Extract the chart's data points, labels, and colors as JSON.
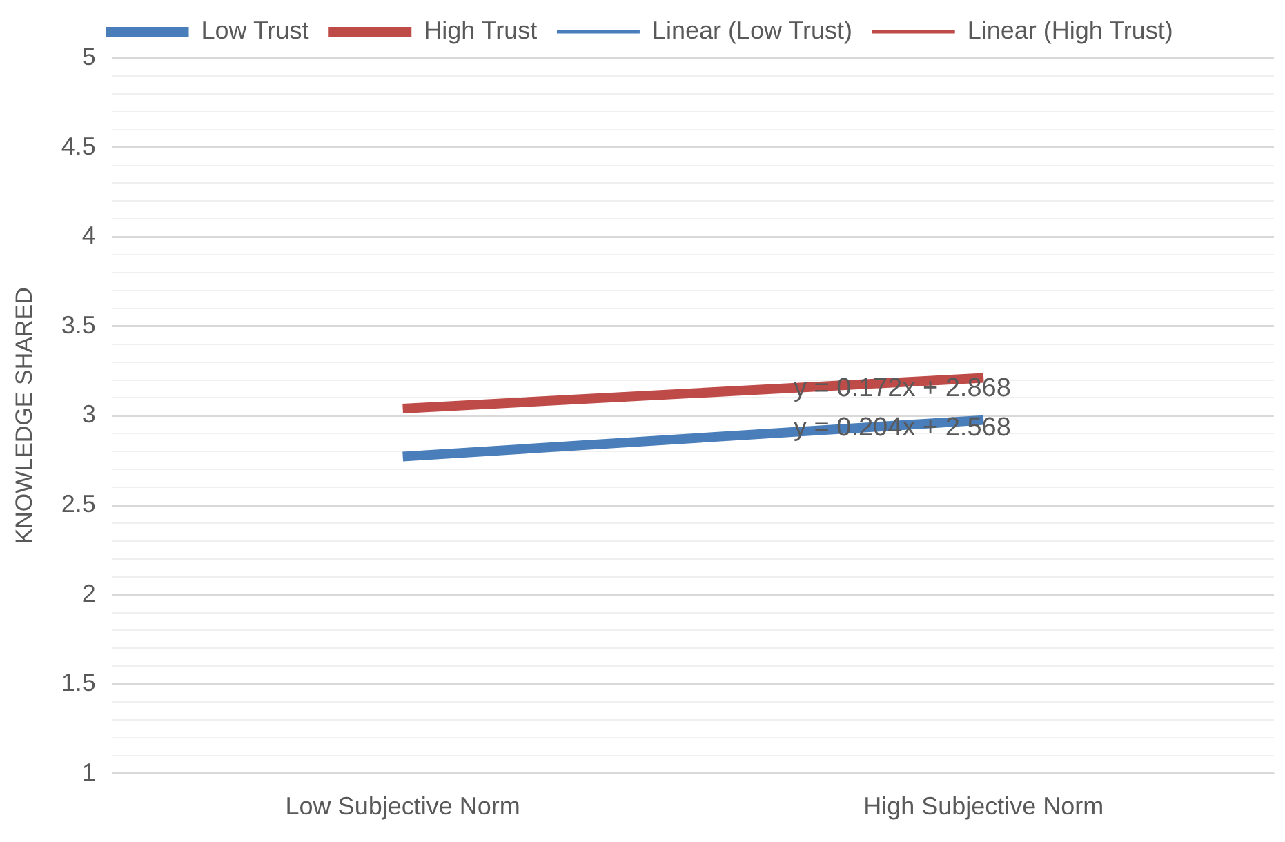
{
  "chart_data": {
    "type": "line",
    "ylabel": "KNOWLEDGE SHARED",
    "categories": [
      "Low Subjective Norm",
      "High Subjective Norm"
    ],
    "series": [
      {
        "name": "Low Trust",
        "color": "#4a7ebb",
        "values": [
          2.772,
          2.976
        ]
      },
      {
        "name": "High Trust",
        "color": "#be4b48",
        "values": [
          3.04,
          3.212
        ]
      },
      {
        "name": "Linear (Low Trust)",
        "color": "#4a7ebb",
        "values": [
          null,
          null
        ]
      },
      {
        "name": "Linear (High Trust)",
        "color": "#be4b48",
        "values": [
          null,
          null
        ]
      }
    ],
    "ylim": [
      1,
      5
    ],
    "yticks": [
      1,
      {
        "value": 1.1,
        "label": null
      },
      {
        "value": 1.2,
        "label": null
      },
      {
        "value": 1.3,
        "label": null
      },
      {
        "value": 1.4,
        "label": null
      },
      1.5,
      {
        "value": 1.6,
        "label": null
      },
      {
        "value": 1.7,
        "label": null
      },
      {
        "value": 1.8,
        "label": null
      },
      {
        "value": 1.9,
        "label": null
      },
      2,
      {
        "value": 2.1,
        "label": null
      },
      {
        "value": 2.2,
        "label": null
      },
      {
        "value": 2.3,
        "label": null
      },
      {
        "value": 2.4,
        "label": null
      },
      2.5,
      {
        "value": 2.6,
        "label": null
      },
      {
        "value": 2.7,
        "label": null
      },
      {
        "value": 2.8,
        "label": null
      },
      {
        "value": 2.9,
        "label": null
      },
      3,
      {
        "value": 3.1,
        "label": null
      },
      {
        "value": 3.2,
        "label": null
      },
      {
        "value": 3.3,
        "label": null
      },
      {
        "value": 3.4,
        "label": null
      },
      3.5,
      {
        "value": 3.6,
        "label": null
      },
      {
        "value": 3.7,
        "label": null
      },
      {
        "value": 3.8,
        "label": null
      },
      {
        "value": 3.9,
        "label": null
      },
      4,
      {
        "value": 4.1,
        "label": null
      },
      {
        "value": 4.2,
        "label": null
      },
      {
        "value": 4.3,
        "label": null
      },
      {
        "value": 4.4,
        "label": null
      },
      4.5,
      {
        "value": 4.6,
        "label": null
      },
      {
        "value": 4.7,
        "label": null
      },
      {
        "value": 4.8,
        "label": null
      },
      {
        "value": 4.9,
        "label": null
      },
      5
    ],
    "grid": "y",
    "legend": "top",
    "marker": "none",
    "annotations": [
      {
        "text": "y = 0.172x + 2.868",
        "y": 3.15
      },
      {
        "text": "y = 0.204x + 2.568",
        "y": 2.93
      }
    ]
  }
}
